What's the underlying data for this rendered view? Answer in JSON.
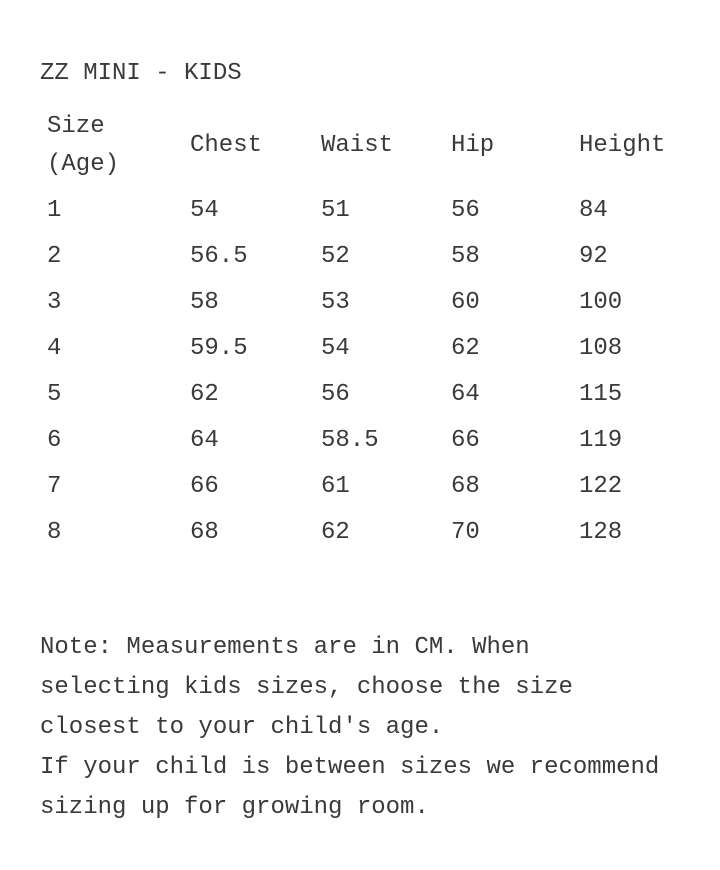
{
  "title": "ZZ MINI - KIDS",
  "table": {
    "headers": {
      "size_line1": "Size",
      "size_line2": "(Age)",
      "chest": "Chest",
      "waist": "Waist",
      "hip": "Hip",
      "height": "Height"
    },
    "rows": [
      [
        "1",
        "54",
        "51",
        "56",
        "84"
      ],
      [
        "2",
        "56.5",
        "52",
        "58",
        "92"
      ],
      [
        "3",
        "58",
        "53",
        "60",
        "100"
      ],
      [
        "4",
        "59.5",
        "54",
        "62",
        "108"
      ],
      [
        "5",
        "62",
        "56",
        "64",
        "115"
      ],
      [
        "6",
        "64",
        "58.5",
        "66",
        "119"
      ],
      [
        "7",
        "66",
        "61",
        "68",
        "122"
      ],
      [
        "8",
        "68",
        "62",
        "70",
        "128"
      ]
    ]
  },
  "note": {
    "lines": [
      "Note: Measurements are in CM. When",
      "selecting kids sizes, choose the size",
      "closest to your child's age.",
      "If your child is between sizes we recommend",
      "sizing up for growing room."
    ]
  }
}
